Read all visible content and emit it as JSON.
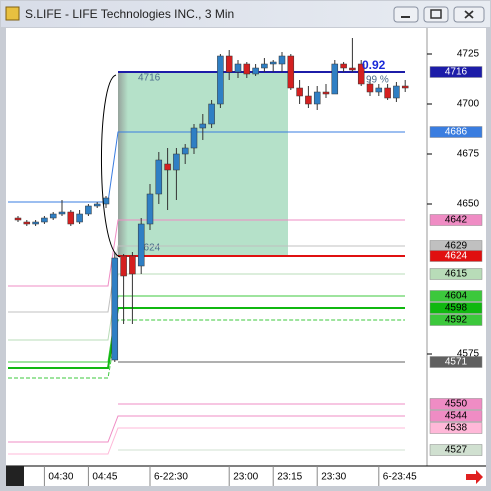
{
  "window": {
    "title": "S.LIFE - LIFE Technologies INC., 3 Min"
  },
  "chart_data": {
    "type": "candlestick",
    "categories": [
      null,
      null,
      null,
      "04:30",
      null,
      null,
      null,
      null,
      "04:45",
      null,
      null,
      null,
      null,
      null,
      null,
      "6-22:30",
      null,
      null,
      null,
      null,
      null,
      null,
      null,
      null,
      "23:00",
      null,
      null,
      null,
      null,
      "23:15",
      null,
      null,
      null,
      null,
      "23:30",
      null,
      null,
      null,
      null,
      null,
      null,
      "6-23:45",
      null,
      null,
      null
    ],
    "open": [
      4643,
      4641,
      4640,
      4641,
      4643,
      4645,
      4646,
      4641,
      4645,
      4649,
      4650,
      4572,
      4624,
      4624,
      4619,
      4640,
      4655,
      4670,
      4667,
      4675,
      4678,
      4688,
      4690,
      4700,
      4724,
      4716,
      4720,
      4715,
      4718,
      4720,
      4720,
      4724,
      4708,
      4704,
      4700,
      4706,
      4705,
      4720,
      4718,
      4720,
      4710,
      4706,
      4708,
      4703,
      4709
    ],
    "high": [
      4644,
      4642,
      4642,
      4644,
      4646,
      4652,
      4647,
      4647,
      4650,
      4651,
      4654,
      4626,
      4625,
      4626,
      4643,
      4660,
      4676,
      4678,
      4678,
      4680,
      4690,
      4695,
      4702,
      4725,
      4727,
      4722,
      4721,
      4720,
      4723,
      4722,
      4726,
      4725,
      4712,
      4709,
      4709,
      4710,
      4722,
      4721,
      4733,
      4722,
      4712,
      4710,
      4710,
      4711,
      4712
    ],
    "low": [
      4641,
      4639,
      4639,
      4640,
      4642,
      4644,
      4639,
      4640,
      4644,
      4648,
      4648,
      4571,
      4590,
      4590,
      4615,
      4637,
      4650,
      4647,
      4652,
      4670,
      4675,
      4682,
      4688,
      4698,
      4712,
      4713,
      4713,
      4714,
      4716,
      4716,
      4716,
      4707,
      4700,
      4698,
      4697,
      4703,
      4705,
      4716,
      4716,
      4709,
      4704,
      4704,
      4702,
      4701,
      4706
    ],
    "close": [
      4642,
      4640,
      4641,
      4643,
      4645,
      4646,
      4640,
      4645,
      4649,
      4650,
      4653,
      4623,
      4614,
      4615,
      4640,
      4655,
      4672,
      4667,
      4675,
      4678,
      4688,
      4690,
      4700,
      4724,
      4716,
      4720,
      4715,
      4718,
      4720,
      4721,
      4724,
      4708,
      4704,
      4700,
      4706,
      4705,
      4720,
      4718,
      4717,
      4710,
      4706,
      4708,
      4703,
      4709,
      4708
    ],
    "up_color": "#2f7fc4",
    "down_color": "#d42020",
    "ylim": [
      4519,
      4738
    ],
    "yticks": [
      4725,
      4700,
      4675,
      4650,
      4575
    ],
    "levels": [
      {
        "value": 4716,
        "before": null,
        "color": "#1c1ca8",
        "text_color": "#ffffff",
        "width": 2
      },
      {
        "value": 4686,
        "before": 4651,
        "color": "#3a7de0",
        "text_color": "#ffffff",
        "width": 1
      },
      {
        "value": 4642,
        "before": 4609,
        "color": "#ef8cc4",
        "text_color": "#000000",
        "width": 1
      },
      {
        "value": 4629,
        "before": 4596,
        "color": "#c0c0c0",
        "text_color": "#000000",
        "width": 1
      },
      {
        "value": 4624,
        "before": null,
        "color": "#e01010",
        "text_color": "#ffffff",
        "width": 2
      },
      {
        "value": 4615,
        "before": 4582,
        "color": "#b8dcb8",
        "text_color": "#000000",
        "width": 1
      },
      {
        "value": 4604,
        "before": 4571,
        "color": "#3cc83c",
        "text_color": "#000000",
        "width": 1
      },
      {
        "value": 4598,
        "before": 4568,
        "color": "#10b810",
        "text_color": "#000000",
        "width": 2
      },
      {
        "value": 4592,
        "before": 4563,
        "color": "#3cc83c",
        "text_color": "#000000",
        "width": 1
      },
      {
        "value": 4571,
        "before": null,
        "color": "#606060",
        "text_color": "#ffffff",
        "width": 1
      },
      {
        "value": 4550,
        "before": null,
        "color": "#ef8cc4",
        "text_color": "#000000",
        "width": 1
      },
      {
        "value": 4544,
        "before": 4531,
        "color": "#ef8cc4",
        "text_color": "#000000",
        "width": 1
      },
      {
        "value": 4538,
        "before": 4525,
        "color": "#ffb8d8",
        "text_color": "#000000",
        "width": 1
      },
      {
        "value": 4527,
        "before": null,
        "color": "#d0e0d0",
        "text_color": "#000000",
        "width": 1
      }
    ],
    "box": {
      "top": 4716,
      "bottom": 4624,
      "color": "#a8dcc0"
    },
    "annotations": [
      "0.92",
      "99 %"
    ]
  }
}
